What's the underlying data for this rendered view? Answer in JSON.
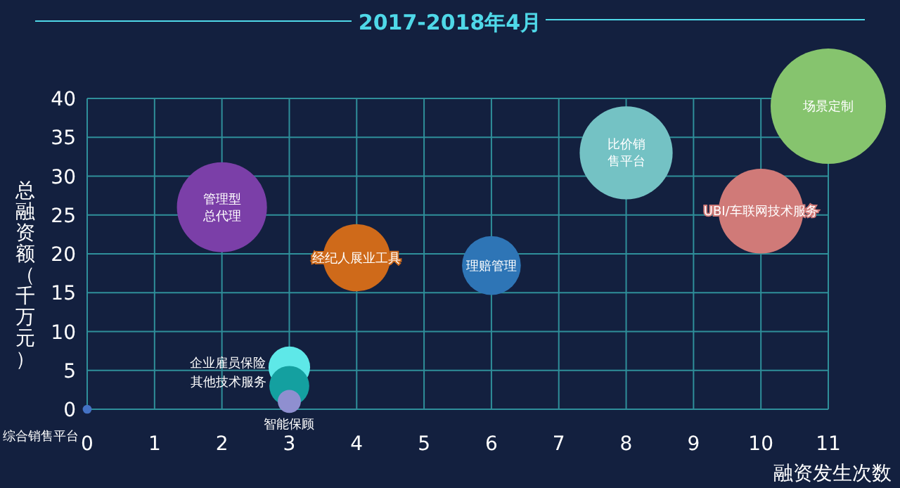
{
  "chart_data": {
    "type": "bubble",
    "title": "2017-2018年4月",
    "xlabel": "融资发生次数",
    "ylabel": "总融资额（千万元）",
    "xlim": [
      0,
      11
    ],
    "ylim": [
      0,
      40
    ],
    "xticks": [
      0,
      1,
      2,
      3,
      4,
      5,
      6,
      7,
      8,
      9,
      10,
      11
    ],
    "yticks": [
      0,
      5,
      10,
      15,
      20,
      25,
      30,
      35,
      40
    ],
    "grid": true,
    "series": [
      {
        "name": "管理型总代理",
        "color": "#7b3fa8",
        "x": [
          2
        ],
        "values": [
          26
        ],
        "sizes": [
          0.61
        ]
      },
      {
        "name": "经纪人展业工具",
        "color": "#cf6a1a",
        "x": [
          4
        ],
        "values": [
          19.5
        ],
        "sizes": [
          0.34
        ]
      },
      {
        "name": "理赔管理",
        "color": "#2e75b6",
        "x": [
          6
        ],
        "values": [
          18.5
        ],
        "sizes": [
          0.26
        ]
      },
      {
        "name": "比价销售平台",
        "color": "#74c2c4",
        "x": [
          8
        ],
        "values": [
          33
        ],
        "sizes": [
          0.65
        ]
      },
      {
        "name": "UBI/车联网技术服务",
        "color": "#d07a78",
        "x": [
          10
        ],
        "values": [
          25.5
        ],
        "sizes": [
          0.54
        ]
      },
      {
        "name": "场景定制",
        "color": "#86c46e",
        "x": [
          11
        ],
        "values": [
          39
        ],
        "sizes": [
          1
        ]
      },
      {
        "name": "企业雇员保险",
        "color": "#5ee8e8",
        "x": [
          3
        ],
        "values": [
          5.4
        ],
        "sizes": [
          0.13
        ]
      },
      {
        "name": "其他技术服务",
        "color": "#14a0a0",
        "x": [
          3
        ],
        "values": [
          3
        ],
        "sizes": [
          0.12
        ]
      },
      {
        "name": "智能保顾",
        "color": "#8f8fd0",
        "x": [
          3
        ],
        "values": [
          1
        ],
        "sizes": [
          0.04
        ]
      },
      {
        "name": "综合销售平台",
        "color": "#4472c4",
        "x": [
          0
        ],
        "values": [
          0
        ],
        "sizes": [
          0.006
        ]
      }
    ]
  }
}
